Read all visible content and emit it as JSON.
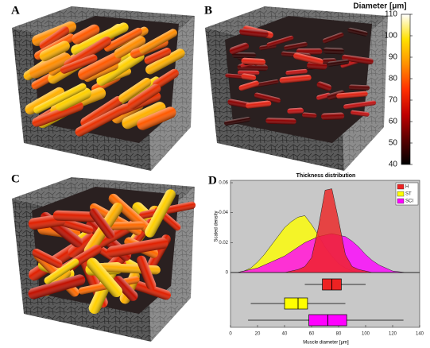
{
  "panel_labels": [
    "A",
    "B",
    "C",
    "D"
  ],
  "colorbar": {
    "title": "Diameter [μm]",
    "lim": [
      40,
      110
    ],
    "ticks": [
      40,
      50,
      60,
      70,
      80,
      90,
      100,
      110
    ],
    "colors": [
      "#000000",
      "#5a0000",
      "#c00000",
      "#ff3000",
      "#ff9000",
      "#ffe000",
      "#ffffff"
    ]
  },
  "chart_data": {
    "type": "density",
    "title": "Thickness distribution",
    "x_label": "Muscle diameter [μm]",
    "y_label": "Scaled density",
    "xlim": [
      0,
      140
    ],
    "xticks": [
      0,
      20,
      40,
      60,
      80,
      100,
      120,
      140
    ],
    "ylim": [
      0,
      0.06
    ],
    "yticks": [
      0,
      0.02,
      0.04,
      0.06
    ],
    "legend": "upper right",
    "x": [
      0,
      5,
      10,
      15,
      20,
      25,
      30,
      35,
      40,
      45,
      50,
      55,
      60,
      65,
      70,
      75,
      80,
      85,
      90,
      95,
      100,
      105,
      110,
      115,
      120,
      125,
      130,
      135,
      140
    ],
    "series": [
      {
        "name": "ST",
        "color": "#ffff00",
        "values": [
          0,
          0,
          0.001,
          0.003,
          0.007,
          0.012,
          0.018,
          0.024,
          0.03,
          0.034,
          0.037,
          0.038,
          0.032,
          0.025,
          0.017,
          0.011,
          0.006,
          0.003,
          0.001,
          0,
          0,
          0,
          0,
          0,
          0,
          0,
          0,
          0,
          0
        ],
        "box": {
          "whisker_low": 15,
          "q1": 40,
          "median": 50,
          "q3": 57,
          "whisker_high": 85
        }
      },
      {
        "name": "SCI",
        "color": "#ff00ff",
        "values": [
          0,
          0,
          0.001,
          0.002,
          0.003,
          0.005,
          0.007,
          0.009,
          0.011,
          0.014,
          0.017,
          0.02,
          0.022,
          0.024,
          0.025,
          0.026,
          0.025,
          0.024,
          0.021,
          0.017,
          0.012,
          0.008,
          0.005,
          0.003,
          0.001,
          0.0005,
          0,
          0,
          0
        ],
        "box": {
          "whisker_low": 13,
          "q1": 58,
          "median": 72,
          "q3": 86,
          "whisker_high": 128
        }
      },
      {
        "name": "H",
        "color": "#ee2222",
        "values": [
          0,
          0,
          0,
          0,
          0,
          0,
          0,
          0,
          0,
          0.001,
          0.002,
          0.004,
          0.01,
          0.03,
          0.055,
          0.056,
          0.035,
          0.012,
          0.004,
          0.002,
          0.001,
          0,
          0,
          0,
          0,
          0,
          0,
          0,
          0
        ],
        "box": {
          "whisker_low": 55,
          "q1": 68,
          "median": 75,
          "q3": 82,
          "whisker_high": 100
        }
      }
    ]
  }
}
